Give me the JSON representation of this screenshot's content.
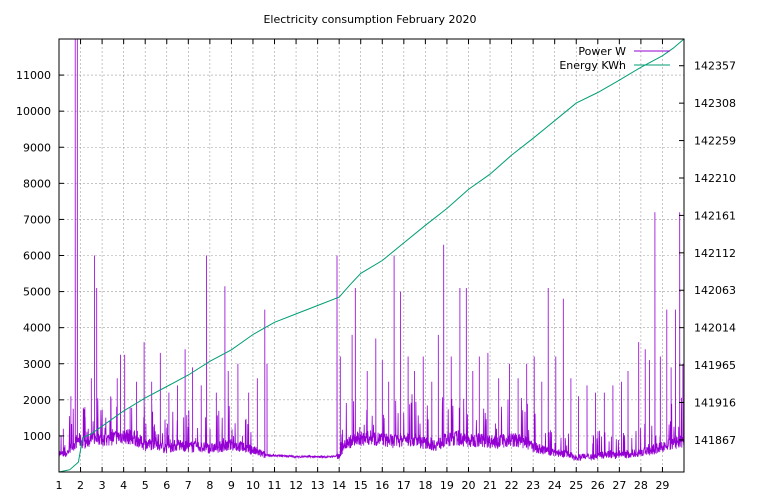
{
  "chart_data": {
    "type": "line",
    "title": "Electricity consumption February 2020",
    "x_range": [
      1,
      30
    ],
    "y_range": [
      0,
      12000
    ],
    "y2_range": [
      141825,
      142392
    ],
    "x_tick_labels": [
      "1",
      "2",
      "3",
      "4",
      "5",
      "6",
      "7",
      "8",
      "9",
      "10",
      "11",
      "12",
      "13",
      "14",
      "15",
      "16",
      "17",
      "18",
      "19",
      "20",
      "21",
      "22",
      "23",
      "24",
      "25",
      "26",
      "27",
      "28",
      "29"
    ],
    "y_ticks": [
      1000,
      2000,
      3000,
      4000,
      5000,
      6000,
      7000,
      8000,
      9000,
      10000,
      11000
    ],
    "y2_ticks": [
      141867,
      141916,
      141965,
      142014,
      142063,
      142112,
      142161,
      142210,
      142259,
      142308,
      142357
    ],
    "grid": true,
    "legend_placement": "top-right",
    "series": [
      {
        "name": "Power W",
        "color": "#9400d3",
        "axis": "left",
        "baseline": [
          [
            1,
            500
          ],
          [
            1.3,
            480
          ],
          [
            1.6,
            700
          ],
          [
            1.9,
            900
          ],
          [
            2.2,
            800
          ],
          [
            2.5,
            900
          ],
          [
            2.8,
            1000
          ],
          [
            3,
            850
          ],
          [
            3.5,
            950
          ],
          [
            4,
            1000
          ],
          [
            4.5,
            950
          ],
          [
            5,
            750
          ],
          [
            5.5,
            800
          ],
          [
            6,
            650
          ],
          [
            6.5,
            750
          ],
          [
            7,
            700
          ],
          [
            7.5,
            700
          ],
          [
            8,
            650
          ],
          [
            8.5,
            700
          ],
          [
            9,
            750
          ],
          [
            9.5,
            700
          ],
          [
            10,
            600
          ],
          [
            10.5,
            480
          ],
          [
            11,
            450
          ],
          [
            11.5,
            450
          ],
          [
            12,
            420
          ],
          [
            12.5,
            430
          ],
          [
            13,
            420
          ],
          [
            13.5,
            420
          ],
          [
            14,
            450
          ],
          [
            14.3,
            800
          ],
          [
            14.8,
            900
          ],
          [
            15.5,
            950
          ],
          [
            16,
            900
          ],
          [
            16.5,
            850
          ],
          [
            17,
            900
          ],
          [
            17.5,
            900
          ],
          [
            18,
            800
          ],
          [
            18.5,
            750
          ],
          [
            19,
            900
          ],
          [
            19.5,
            950
          ],
          [
            20,
            850
          ],
          [
            20.5,
            900
          ],
          [
            21,
            850
          ],
          [
            21.5,
            850
          ],
          [
            22,
            900
          ],
          [
            22.5,
            850
          ],
          [
            23,
            700
          ],
          [
            23.5,
            600
          ],
          [
            24,
            550
          ],
          [
            24.5,
            500
          ],
          [
            25,
            400
          ],
          [
            25.5,
            420
          ],
          [
            26,
            450
          ],
          [
            26.5,
            500
          ],
          [
            27,
            450
          ],
          [
            27.5,
            500
          ],
          [
            28,
            550
          ],
          [
            28.5,
            600
          ],
          [
            29,
            700
          ],
          [
            29.5,
            800
          ],
          [
            30,
            850
          ]
        ],
        "spikes": [
          [
            1.2,
            1200
          ],
          [
            1.55,
            2100
          ],
          [
            1.75,
            12000
          ],
          [
            1.85,
            12000
          ],
          [
            2.2,
            1800
          ],
          [
            2.5,
            2600
          ],
          [
            2.65,
            6000
          ],
          [
            2.75,
            5100
          ],
          [
            3.4,
            2000
          ],
          [
            3.7,
            2600
          ],
          [
            3.85,
            3250
          ],
          [
            4.05,
            3250
          ],
          [
            4.3,
            1800
          ],
          [
            4.6,
            2500
          ],
          [
            4.95,
            3600
          ],
          [
            5.3,
            2500
          ],
          [
            5.7,
            3300
          ],
          [
            6.1,
            2200
          ],
          [
            6.5,
            2400
          ],
          [
            6.85,
            3400
          ],
          [
            7.2,
            2900
          ],
          [
            7.6,
            2400
          ],
          [
            7.85,
            6000
          ],
          [
            8.3,
            2200
          ],
          [
            8.7,
            5150
          ],
          [
            8.85,
            2800
          ],
          [
            9.3,
            3000
          ],
          [
            9.8,
            2200
          ],
          [
            10.2,
            2600
          ],
          [
            10.55,
            4500
          ],
          [
            10.65,
            3000
          ],
          [
            13.9,
            6000
          ],
          [
            14.05,
            3200
          ],
          [
            14.6,
            3800
          ],
          [
            14.75,
            5100
          ],
          [
            15.3,
            2800
          ],
          [
            15.7,
            3700
          ],
          [
            16,
            3100
          ],
          [
            16.3,
            2500
          ],
          [
            16.55,
            6000
          ],
          [
            16.85,
            5000
          ],
          [
            17.2,
            3200
          ],
          [
            17.5,
            2800
          ],
          [
            17.9,
            3200
          ],
          [
            18.3,
            2500
          ],
          [
            18.6,
            3800
          ],
          [
            18.85,
            6300
          ],
          [
            19.2,
            3200
          ],
          [
            19.6,
            5100
          ],
          [
            19.9,
            5100
          ],
          [
            20.2,
            2800
          ],
          [
            20.5,
            3200
          ],
          [
            20.9,
            3300
          ],
          [
            21.4,
            2600
          ],
          [
            21.9,
            3000
          ],
          [
            22.3,
            2600
          ],
          [
            22.7,
            3000
          ],
          [
            23.05,
            3200
          ],
          [
            23.4,
            2500
          ],
          [
            23.7,
            5100
          ],
          [
            24.05,
            3200
          ],
          [
            24.4,
            4800
          ],
          [
            24.75,
            2600
          ],
          [
            25.1,
            2100
          ],
          [
            25.5,
            2400
          ],
          [
            25.9,
            2200
          ],
          [
            26.3,
            2200
          ],
          [
            26.7,
            2400
          ],
          [
            27.1,
            2500
          ],
          [
            27.4,
            2800
          ],
          [
            27.9,
            3600
          ],
          [
            28.2,
            3400
          ],
          [
            28.4,
            3100
          ],
          [
            28.65,
            7200
          ],
          [
            28.9,
            3200
          ],
          [
            29.2,
            4500
          ],
          [
            29.4,
            2900
          ],
          [
            29.6,
            4500
          ],
          [
            29.8,
            7200
          ],
          [
            29.95,
            3000
          ]
        ]
      },
      {
        "name": "Energy KWh",
        "color": "#009e73",
        "axis": "right",
        "points": [
          [
            1,
            141825
          ],
          [
            1.5,
            141828
          ],
          [
            1.9,
            141838
          ],
          [
            2.1,
            141870
          ],
          [
            2.5,
            141875
          ],
          [
            3,
            141885
          ],
          [
            4,
            141905
          ],
          [
            5,
            141922
          ],
          [
            6,
            141937
          ],
          [
            7,
            141952
          ],
          [
            8,
            141970
          ],
          [
            9,
            141985
          ],
          [
            10,
            142005
          ],
          [
            10.5,
            142013
          ],
          [
            11,
            142021
          ],
          [
            12,
            142032
          ],
          [
            13,
            142043
          ],
          [
            14,
            142054
          ],
          [
            14.5,
            142070
          ],
          [
            15,
            142085
          ],
          [
            16,
            142102
          ],
          [
            17,
            142125
          ],
          [
            18,
            142148
          ],
          [
            19,
            142170
          ],
          [
            20,
            142195
          ],
          [
            21,
            142215
          ],
          [
            22,
            142240
          ],
          [
            23,
            142262
          ],
          [
            24,
            142285
          ],
          [
            25,
            142308
          ],
          [
            26,
            142322
          ],
          [
            27,
            142338
          ],
          [
            28,
            142355
          ],
          [
            29,
            142370
          ],
          [
            29.5,
            142380
          ],
          [
            30,
            142392
          ]
        ]
      }
    ]
  }
}
